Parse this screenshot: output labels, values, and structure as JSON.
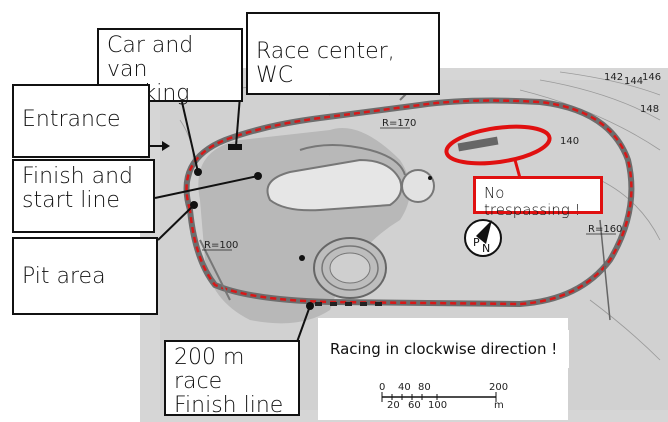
{
  "labels": {
    "car_parking": "Car and van parking",
    "race_center": "Race center, WC",
    "entrance": "Entrance",
    "finish_start": "Finish and start line",
    "pit_area": "Pit area",
    "no_trespassing": "No trespassing !",
    "finish_200m": "200 m race Finish line",
    "direction_note": "Racing in clockwise direction !"
  },
  "map_marks": {
    "radius_170": "R=170",
    "radius_100": "R=100",
    "radius_160": "R=160",
    "north_letter": "N",
    "parking_letter": "P",
    "contours": [
      "142",
      "144",
      "146",
      "148",
      "140"
    ]
  },
  "scale_bar": {
    "top_ticks": [
      "0",
      "40",
      "80",
      "200"
    ],
    "bottom_ticks": [
      "20",
      "60",
      "100",
      "m"
    ]
  },
  "colors": {
    "route": "#d81818",
    "highlight": "#e01010",
    "track": "#777777",
    "ground": "#c9c9c9"
  }
}
